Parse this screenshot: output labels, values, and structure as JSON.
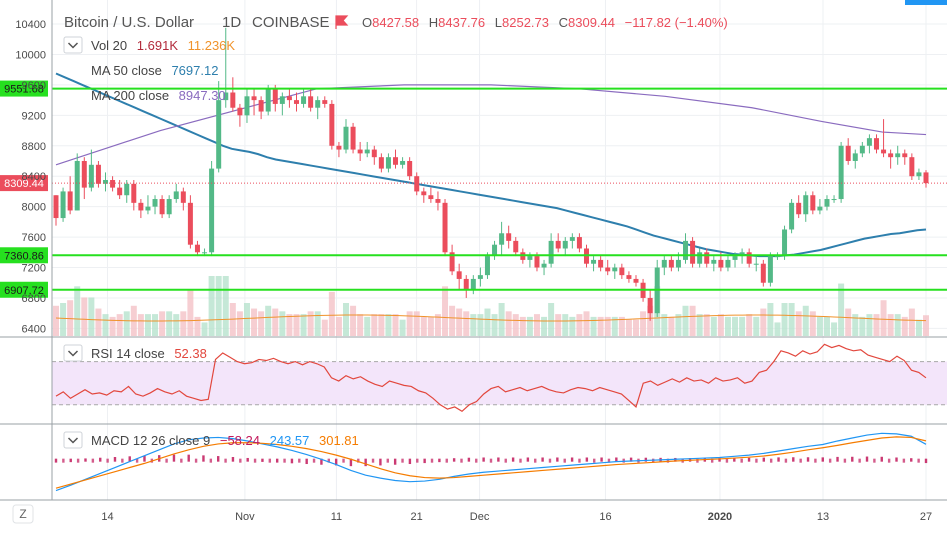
{
  "header": {
    "symbol": "Bitcoin / U.S. Dollar",
    "interval": "1D",
    "exchange": "COINBASE",
    "o_label": "O",
    "o_value": "8427.58",
    "h_label": "H",
    "h_value": "8437.76",
    "l_label": "L",
    "l_value": "8252.73",
    "c_label": "C",
    "c_value": "8309.44",
    "change": "−117.82 (−1.40%)"
  },
  "legend": {
    "vol_label": "Vol 20",
    "vol_value": "1.691K",
    "vol_ma_value": "11.236K",
    "ma50_label": "MA 50 close",
    "ma50_value": "7697.12",
    "ma200_label": "MA 200 close",
    "ma200_value": "8947.30"
  },
  "rsi_panel": {
    "label": "RSI 14 close",
    "value": "52.38"
  },
  "macd_panel": {
    "label": "MACD 12 26 close 9",
    "hist_value": "−58.24",
    "macd_value": "243.57",
    "signal_value": "301.81"
  },
  "price_tags": {
    "current": "8309.44",
    "lines": [
      "9551.68",
      "7360.86",
      "6907.72"
    ]
  },
  "timezone_button": "Z",
  "colors": {
    "up": "#53b987",
    "down": "#eb4d5c",
    "ma50": "#2e7fad",
    "ma200": "#8a6bbf",
    "hline": "#26e01f",
    "rsi": "#e2473d",
    "rsi_band": "#f3e5fa",
    "macd": "#2196f3",
    "signal": "#f57c00",
    "hist": "#c2185b",
    "axis_text": "#4a4a4a"
  },
  "chart_data": {
    "type": "candlestick",
    "ylim": [
      6300,
      10650
    ],
    "y_ticks": [
      6400,
      6800,
      7200,
      7600,
      8000,
      8400,
      8800,
      9200,
      9600,
      10000,
      10400
    ],
    "x_tick_labels": [
      "14",
      "Nov",
      "11",
      "21",
      "Dec",
      "16",
      "2020",
      "13",
      "27"
    ],
    "horizontal_lines": [
      9551.68,
      7360.86,
      6907.72
    ],
    "current_price": 8309.44,
    "candles": [
      [
        8150,
        8150,
        7750,
        7850
      ],
      [
        7850,
        8250,
        7800,
        8200
      ],
      [
        8200,
        8400,
        7900,
        7950
      ],
      [
        7950,
        8700,
        7950,
        8600
      ],
      [
        8600,
        8650,
        8100,
        8250
      ],
      [
        8250,
        8750,
        8200,
        8550
      ],
      [
        8550,
        8600,
        8250,
        8300
      ],
      [
        8300,
        8450,
        8200,
        8350
      ],
      [
        8350,
        8400,
        8200,
        8250
      ],
      [
        8250,
        8350,
        8100,
        8150
      ],
      [
        8150,
        8350,
        8050,
        8300
      ],
      [
        8300,
        8350,
        7950,
        8050
      ],
      [
        8050,
        8100,
        7850,
        7950
      ],
      [
        7950,
        8150,
        7900,
        8000
      ],
      [
        8000,
        8150,
        7900,
        8100
      ],
      [
        8100,
        8150,
        7850,
        7900
      ],
      [
        7900,
        8150,
        7850,
        8100
      ],
      [
        8100,
        8300,
        8050,
        8200
      ],
      [
        8200,
        8250,
        7950,
        8050
      ],
      [
        8050,
        8150,
        7450,
        7500
      ],
      [
        7500,
        7550,
        7350,
        7400
      ],
      [
        7400,
        7450,
        7350,
        7400
      ],
      [
        7400,
        8600,
        7350,
        8500
      ],
      [
        8500,
        9650,
        8450,
        9400
      ],
      [
        9400,
        10350,
        9300,
        9500
      ],
      [
        9500,
        9700,
        9250,
        9300
      ],
      [
        9300,
        9350,
        9050,
        9200
      ],
      [
        9200,
        9550,
        9100,
        9450
      ],
      [
        9450,
        9550,
        9200,
        9400
      ],
      [
        9400,
        9450,
        9150,
        9250
      ],
      [
        9250,
        9600,
        9200,
        9550
      ],
      [
        9550,
        9600,
        9250,
        9350
      ],
      [
        9350,
        9500,
        9200,
        9450
      ],
      [
        9450,
        9550,
        9300,
        9400
      ],
      [
        9400,
        9500,
        9250,
        9350
      ],
      [
        9350,
        9550,
        9300,
        9450
      ],
      [
        9450,
        9550,
        9250,
        9300
      ],
      [
        9300,
        9450,
        9150,
        9400
      ],
      [
        9400,
        9450,
        9300,
        9350
      ],
      [
        9350,
        9400,
        8750,
        8800
      ],
      [
        8800,
        8850,
        8650,
        8750
      ],
      [
        8750,
        9150,
        8700,
        9050
      ],
      [
        9050,
        9100,
        8700,
        8750
      ],
      [
        8750,
        8850,
        8600,
        8700
      ],
      [
        8700,
        8850,
        8650,
        8750
      ],
      [
        8750,
        8800,
        8550,
        8650
      ],
      [
        8650,
        8700,
        8450,
        8500
      ],
      [
        8500,
        8700,
        8450,
        8650
      ],
      [
        8650,
        8750,
        8500,
        8550
      ],
      [
        8550,
        8650,
        8500,
        8600
      ],
      [
        8600,
        8650,
        8350,
        8400
      ],
      [
        8400,
        8450,
        8150,
        8200
      ],
      [
        8200,
        8250,
        8050,
        8150
      ],
      [
        8150,
        8250,
        8050,
        8100
      ],
      [
        8100,
        8200,
        7950,
        8050
      ],
      [
        8050,
        8100,
        7350,
        7400
      ],
      [
        7400,
        7500,
        7100,
        7150
      ],
      [
        7150,
        7250,
        6900,
        7050
      ],
      [
        7050,
        7100,
        6800,
        6900
      ],
      [
        6900,
        7100,
        6850,
        7050
      ],
      [
        7050,
        7200,
        6950,
        7100
      ],
      [
        7100,
        7400,
        7050,
        7350
      ],
      [
        7350,
        7550,
        7300,
        7500
      ],
      [
        7500,
        7800,
        7350,
        7650
      ],
      [
        7650,
        7750,
        7450,
        7550
      ],
      [
        7550,
        7600,
        7350,
        7400
      ],
      [
        7400,
        7450,
        7250,
        7300
      ],
      [
        7300,
        7400,
        7200,
        7350
      ],
      [
        7350,
        7400,
        7150,
        7200
      ],
      [
        7200,
        7300,
        7100,
        7250
      ],
      [
        7250,
        7650,
        7200,
        7550
      ],
      [
        7550,
        7650,
        7400,
        7450
      ],
      [
        7450,
        7600,
        7350,
        7550
      ],
      [
        7550,
        7650,
        7450,
        7600
      ],
      [
        7600,
        7650,
        7400,
        7450
      ],
      [
        7450,
        7500,
        7200,
        7250
      ],
      [
        7250,
        7350,
        7150,
        7300
      ],
      [
        7300,
        7350,
        7150,
        7200
      ],
      [
        7200,
        7300,
        7100,
        7150
      ],
      [
        7150,
        7250,
        7050,
        7200
      ],
      [
        7200,
        7250,
        7050,
        7100
      ],
      [
        7100,
        7150,
        7000,
        7050
      ],
      [
        7050,
        7100,
        6950,
        7000
      ],
      [
        7000,
        7050,
        6750,
        6800
      ],
      [
        6800,
        6900,
        6500,
        6600
      ],
      [
        6600,
        7300,
        6550,
        7200
      ],
      [
        7200,
        7350,
        7100,
        7300
      ],
      [
        7300,
        7350,
        7150,
        7200
      ],
      [
        7200,
        7400,
        7150,
        7300
      ],
      [
        7300,
        7650,
        7250,
        7550
      ],
      [
        7550,
        7600,
        7200,
        7250
      ],
      [
        7250,
        7450,
        7200,
        7400
      ],
      [
        7400,
        7450,
        7200,
        7250
      ],
      [
        7250,
        7350,
        7150,
        7300
      ],
      [
        7300,
        7400,
        7150,
        7200
      ],
      [
        7200,
        7350,
        7150,
        7300
      ],
      [
        7300,
        7400,
        7200,
        7350
      ],
      [
        7350,
        7450,
        7250,
        7400
      ],
      [
        7400,
        7450,
        7200,
        7250
      ],
      [
        7250,
        7350,
        7150,
        7250
      ],
      [
        7250,
        7300,
        6950,
        7000
      ],
      [
        7000,
        7400,
        6950,
        7350
      ],
      [
        7350,
        7400,
        7300,
        7350
      ],
      [
        7350,
        7750,
        7300,
        7700
      ],
      [
        7700,
        8100,
        7650,
        8050
      ],
      [
        8050,
        8150,
        7850,
        7900
      ],
      [
        7900,
        8200,
        7800,
        8150
      ],
      [
        8150,
        8200,
        7900,
        7950
      ],
      [
        7950,
        8100,
        7900,
        8000
      ],
      [
        8000,
        8150,
        7950,
        8100
      ],
      [
        8100,
        8150,
        8050,
        8100
      ],
      [
        8100,
        8850,
        8050,
        8800
      ],
      [
        8800,
        8900,
        8550,
        8600
      ],
      [
        8600,
        8750,
        8500,
        8700
      ],
      [
        8700,
        8850,
        8650,
        8800
      ],
      [
        8800,
        8950,
        8700,
        8900
      ],
      [
        8900,
        8950,
        8700,
        8750
      ],
      [
        8750,
        9150,
        8650,
        8700
      ],
      [
        8700,
        8750,
        8500,
        8650
      ],
      [
        8650,
        8800,
        8550,
        8700
      ],
      [
        8700,
        8750,
        8550,
        8650
      ],
      [
        8650,
        8700,
        8350,
        8400
      ],
      [
        8400,
        8500,
        8350,
        8450
      ],
      [
        8450,
        8480,
        8250,
        8309
      ]
    ],
    "ma50": [
      9750,
      9700,
      9650,
      9600,
      9550,
      9500,
      9450,
      9400,
      9350,
      9300,
      9250,
      9200,
      9150,
      9100,
      9050,
      9000,
      8950,
      8900,
      8850,
      8800,
      8760,
      8740,
      8720,
      8690,
      8650,
      8620,
      8600,
      8580,
      8560,
      8540,
      8520,
      8500,
      8480,
      8460,
      8440,
      8420,
      8400,
      8380,
      8360,
      8340,
      8320,
      8300,
      8280,
      8260,
      8240,
      8220,
      8200,
      8180,
      8160,
      8140,
      8120,
      8100,
      8080,
      8060,
      8040,
      8020,
      8000,
      7980,
      7950,
      7920,
      7890,
      7860,
      7830,
      7800,
      7770,
      7740,
      7700,
      7660,
      7620,
      7590,
      7560,
      7530,
      7500,
      7470,
      7440,
      7420,
      7400,
      7380,
      7370,
      7360,
      7350,
      7350,
      7350,
      7360,
      7370,
      7390,
      7410,
      7430,
      7460,
      7490,
      7520,
      7550,
      7580,
      7600,
      7620,
      7640,
      7650,
      7670,
      7690,
      7700
    ],
    "ma200": [
      8550,
      9000,
      9550,
      9600,
      9600,
      9550,
      9450,
      9300,
      9120,
      8980,
      8947
    ],
    "ma200_x": [
      0,
      0.12,
      0.3,
      0.4,
      0.5,
      0.6,
      0.7,
      0.8,
      0.88,
      0.95,
      1.0
    ],
    "volume_ma_level": 0.55,
    "rsi": {
      "ylim": [
        15,
        90
      ],
      "upper_band": 70,
      "lower_band": 30,
      "values": [
        38,
        42,
        36,
        40,
        44,
        40,
        41,
        39,
        43,
        42,
        47,
        40,
        38,
        41,
        45,
        42,
        40,
        43,
        38,
        36,
        34,
        35,
        72,
        78,
        74,
        70,
        68,
        69,
        72,
        71,
        73,
        70,
        68,
        70,
        67,
        70,
        68,
        65,
        55,
        52,
        57,
        54,
        56,
        52,
        49,
        47,
        52,
        50,
        48,
        47,
        43,
        41,
        36,
        30,
        26,
        28,
        24,
        30,
        33,
        40,
        45,
        47,
        42,
        44,
        46,
        43,
        45,
        47,
        44,
        42,
        41,
        44,
        46,
        45,
        43,
        46,
        44,
        42,
        40,
        34,
        28,
        50,
        52,
        48,
        51,
        54,
        51,
        55,
        52,
        53,
        50,
        55,
        52,
        53,
        55,
        50,
        52,
        60,
        62,
        70,
        80,
        78,
        75,
        80,
        77,
        79,
        86,
        83,
        85,
        82,
        80,
        81,
        76,
        74,
        72,
        70,
        75,
        71,
        62,
        60,
        55
      ]
    },
    "macd": {
      "ylim": [
        -650,
        520
      ],
      "macd_values": [
        -540,
        -450,
        -350,
        -250,
        -150,
        -50,
        50,
        150,
        250,
        320,
        350,
        360,
        340,
        300,
        250,
        200,
        140,
        70,
        -10,
        -100,
        -200,
        -280,
        -330,
        -370,
        -390,
        -380,
        -350,
        -300,
        -260,
        -230,
        -210,
        -190,
        -170,
        -150,
        -130,
        -110,
        -90,
        -70,
        -50,
        -40,
        -30,
        -20,
        -10,
        0,
        10,
        20,
        40,
        60,
        90,
        130,
        170,
        210,
        240,
        300,
        350,
        400,
        430,
        420,
        380,
        243
      ],
      "signal_values": [
        -500,
        -430,
        -360,
        -290,
        -220,
        -150,
        -80,
        0,
        80,
        150,
        210,
        250,
        270,
        270,
        260,
        240,
        210,
        170,
        120,
        60,
        -10,
        -90,
        -170,
        -240,
        -290,
        -320,
        -330,
        -320,
        -300,
        -280,
        -260,
        -240,
        -220,
        -200,
        -180,
        -160,
        -140,
        -120,
        -100,
        -85,
        -70,
        -55,
        -40,
        -28,
        -15,
        -5,
        10,
        25,
        45,
        75,
        110,
        150,
        185,
        225,
        270,
        310,
        350,
        370,
        360,
        302
      ]
    }
  }
}
